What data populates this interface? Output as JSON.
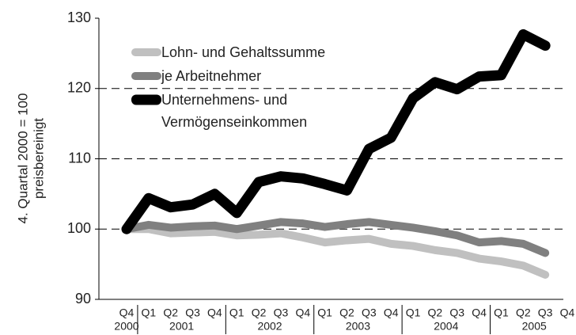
{
  "chart_data": {
    "type": "line",
    "ylabel": [
      "4. Quartal 2000 = 100",
      "preisbereinigt"
    ],
    "categories": [
      "Q4",
      "Q1",
      "Q2",
      "Q3",
      "Q4",
      "Q1",
      "Q2",
      "Q3",
      "Q4",
      "Q1",
      "Q2",
      "Q3",
      "Q4",
      "Q1",
      "Q2",
      "Q3",
      "Q4",
      "Q1",
      "Q2",
      "Q3",
      "Q4"
    ],
    "x_groups": [
      {
        "label": "2000",
        "size": 1
      },
      {
        "label": "2001",
        "size": 4
      },
      {
        "label": "2002",
        "size": 4
      },
      {
        "label": "2003",
        "size": 4
      },
      {
        "label": "2004",
        "size": 4
      },
      {
        "label": "2005",
        "size": 4
      }
    ],
    "series": [
      {
        "name": "Lohn- und Gehaltssumme",
        "color": "#c0c0c0",
        "values": [
          100,
          100.0,
          99.4,
          99.5,
          99.6,
          99.1,
          99.2,
          99.4,
          98.8,
          98.1,
          98.4,
          98.6,
          97.9,
          97.6,
          97.0,
          96.6,
          95.8,
          95.4,
          94.8,
          93.5,
          null
        ]
      },
      {
        "name": "je Arbeitnehmer",
        "color": "#808080",
        "values": [
          100,
          100.6,
          100.2,
          100.4,
          100.5,
          100.0,
          100.5,
          101.0,
          100.8,
          100.3,
          100.7,
          101.0,
          100.6,
          100.2,
          99.7,
          99.1,
          98.1,
          98.3,
          97.9,
          96.6,
          null
        ]
      },
      {
        "name": "Unternehmens- und Vermögenseinkommen",
        "color": "#000000",
        "values": [
          100,
          104.4,
          103.1,
          103.5,
          105.0,
          102.3,
          106.7,
          107.5,
          107.2,
          106.4,
          105.5,
          111.4,
          113.0,
          118.6,
          120.9,
          119.9,
          121.7,
          121.9,
          127.7,
          126.1,
          null
        ]
      }
    ],
    "ylim": [
      90,
      130
    ],
    "yticks": [
      90,
      100,
      110,
      120,
      130
    ],
    "grid": true,
    "legend": "upper left"
  }
}
